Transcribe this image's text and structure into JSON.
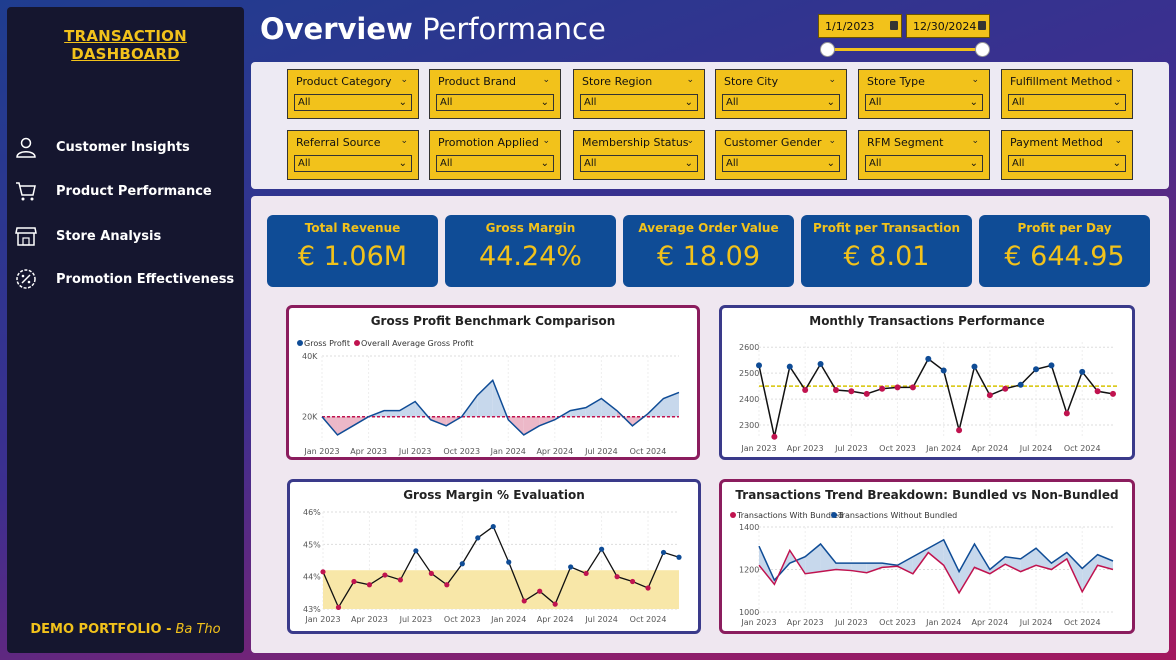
{
  "sidebar": {
    "brand": "TRANSACTION DASHBOARD",
    "items": [
      {
        "label": "Customer Insights",
        "icon": "user-icon"
      },
      {
        "label": "Product Performance",
        "icon": "cart-icon"
      },
      {
        "label": "Store Analysis",
        "icon": "store-icon"
      },
      {
        "label": "Promotion Effectiveness",
        "icon": "percent-badge-icon"
      }
    ],
    "footer": "DEMO PORTFOLIO -",
    "author": "Ba Tho"
  },
  "header": {
    "title_bold": "Overview",
    "title_rest": "Performance",
    "date_start": "1/1/2023",
    "date_end": "12/30/2024"
  },
  "filters": [
    {
      "label": "Product Category",
      "value": "All"
    },
    {
      "label": "Product Brand",
      "value": "All"
    },
    {
      "label": "Store Region",
      "value": "All"
    },
    {
      "label": "Store City",
      "value": "All"
    },
    {
      "label": "Store Type",
      "value": "All"
    },
    {
      "label": "Fulfillment Method",
      "value": "All"
    },
    {
      "label": "Referral Source",
      "value": "All"
    },
    {
      "label": "Promotion Applied",
      "value": "All"
    },
    {
      "label": "Membership Status",
      "value": "All"
    },
    {
      "label": "Customer Gender",
      "value": "All"
    },
    {
      "label": "RFM Segment",
      "value": "All"
    },
    {
      "label": "Payment Method",
      "value": "All"
    }
  ],
  "kpis": [
    {
      "label": "Total Revenue",
      "value": "€ 1.06M"
    },
    {
      "label": "Gross Margin",
      "value": "44.24%"
    },
    {
      "label": "Average Order Value",
      "value": "€ 18.09"
    },
    {
      "label": "Profit per Transaction",
      "value": "€ 8.01"
    },
    {
      "label": "Profit per Day",
      "value": "€ 644.95"
    }
  ],
  "colors": {
    "accent": "#f2c21b",
    "kpi_bg": "#0f4c96",
    "series_blue": "#0f4c96",
    "series_red": "#c0134f"
  },
  "chart_data": [
    {
      "type": "area",
      "title": "Gross Profit Benchmark Comparison",
      "legend": [
        "Gross Profit",
        "Overall Average Gross Profit"
      ],
      "x_ticks": [
        "Jan 2023",
        "Apr 2023",
        "Jul 2023",
        "Oct 2023",
        "Jan 2024",
        "Apr 2024",
        "Jul 2024",
        "Oct 2024"
      ],
      "y_ticks": [
        "40K",
        "20K"
      ],
      "ylim": [
        12000,
        40000
      ],
      "series": [
        {
          "name": "Gross Profit",
          "values": [
            20000,
            14000,
            17000,
            20000,
            22000,
            22000,
            25000,
            19000,
            17000,
            20000,
            27000,
            32000,
            19000,
            14000,
            17000,
            19000,
            22000,
            23000,
            26000,
            22000,
            17000,
            21000,
            26000,
            28000
          ]
        },
        {
          "name": "Overall Average Gross Profit",
          "values": [
            20000,
            20000,
            20000,
            20000,
            20000,
            20000,
            20000,
            20000,
            20000,
            20000,
            20000,
            20000,
            20000,
            20000,
            20000,
            20000,
            20000,
            20000,
            20000,
            20000,
            20000,
            20000,
            20000,
            20000
          ]
        }
      ]
    },
    {
      "type": "line",
      "title": "Monthly Transactions Performance",
      "x_ticks": [
        "Jan 2023",
        "Apr 2023",
        "Jul 2023",
        "Oct 2023",
        "Jan 2024",
        "Apr 2024",
        "Jul 2024",
        "Oct 2024"
      ],
      "y_ticks": [
        "2600",
        "2500",
        "2400",
        "2300"
      ],
      "ylim": [
        2250,
        2620
      ],
      "average": 2450,
      "values": [
        2530,
        2255,
        2525,
        2435,
        2535,
        2435,
        2430,
        2420,
        2440,
        2445,
        2445,
        2555,
        2510,
        2280,
        2525,
        2415,
        2440,
        2455,
        2515,
        2530,
        2345,
        2505,
        2430,
        2420
      ]
    },
    {
      "type": "line",
      "title": "Gross Margin % Evaluation",
      "x_ticks": [
        "Jan 2023",
        "Apr 2023",
        "Jul 2023",
        "Oct 2023",
        "Jan 2024",
        "Apr 2024",
        "Jul 2024",
        "Oct 2024"
      ],
      "y_ticks": [
        "46%",
        "45%",
        "44%",
        "43%"
      ],
      "ylim": [
        43,
        46
      ],
      "band": [
        43,
        44.2
      ],
      "values": [
        44.15,
        43.05,
        43.85,
        43.75,
        44.05,
        43.9,
        44.8,
        44.1,
        43.75,
        44.4,
        45.2,
        45.55,
        44.45,
        43.25,
        43.55,
        43.15,
        44.3,
        44.1,
        44.85,
        44.0,
        43.85,
        43.65,
        44.75,
        44.6
      ]
    },
    {
      "type": "line",
      "title": "Transactions Trend Breakdown: Bundled vs Non-Bundled",
      "legend": [
        "Transactions With Bundled",
        "Transactions Without Bundled"
      ],
      "x_ticks": [
        "Jan 2023",
        "Apr 2023",
        "Jul 2023",
        "Oct 2023",
        "Jan 2024",
        "Apr 2024",
        "Jul 2024",
        "Oct 2024"
      ],
      "y_ticks": [
        "1400",
        "1200",
        "1000"
      ],
      "ylim": [
        1000,
        1400
      ],
      "series": [
        {
          "name": "Transactions With Bundled",
          "values": [
            1220,
            1130,
            1290,
            1180,
            1190,
            1200,
            1195,
            1185,
            1210,
            1215,
            1180,
            1280,
            1220,
            1090,
            1210,
            1180,
            1225,
            1190,
            1220,
            1200,
            1250,
            1095,
            1220,
            1200
          ]
        },
        {
          "name": "Transactions Without Bundled",
          "values": [
            1310,
            1150,
            1230,
            1260,
            1320,
            1230,
            1230,
            1230,
            1230,
            1220,
            1260,
            1300,
            1340,
            1190,
            1320,
            1200,
            1260,
            1250,
            1300,
            1230,
            1280,
            1205,
            1270,
            1240
          ]
        }
      ]
    }
  ]
}
